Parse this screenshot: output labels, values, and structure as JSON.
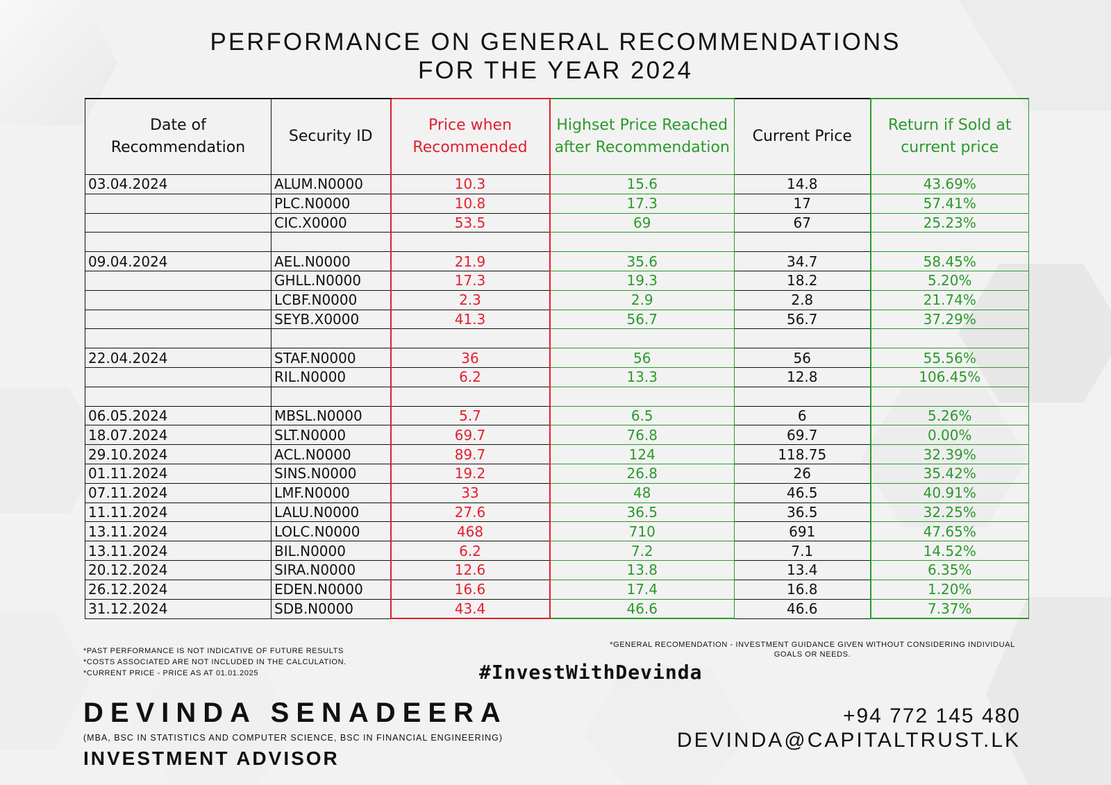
{
  "title": {
    "line1": "PERFORMANCE ON GENERAL RECOMMENDATIONS",
    "line2": "FOR THE YEAR 2024"
  },
  "table": {
    "headers": {
      "date": "Date of Recommendation",
      "security": "Security ID",
      "price_rec": "Price when Recommended",
      "highest": "Highset Price Reached after Recommendation",
      "current": "Current Price",
      "return": "Return if Sold at current price"
    },
    "rows": [
      {
        "date": "03.04.2024",
        "security": "ALUM.N0000",
        "price_rec": "10.3",
        "highest": "15.6",
        "current": "14.8",
        "return": "43.69%"
      },
      {
        "date": "",
        "security": "PLC.N0000",
        "price_rec": "10.8",
        "highest": "17.3",
        "current": "17",
        "return": "57.41%"
      },
      {
        "date": "",
        "security": "CIC.X0000",
        "price_rec": "53.5",
        "highest": "69",
        "current": "67",
        "return": "25.23%"
      },
      {
        "date": "",
        "security": "",
        "price_rec": "",
        "highest": "",
        "current": "",
        "return": ""
      },
      {
        "date": "09.04.2024",
        "security": "AEL.N0000",
        "price_rec": "21.9",
        "highest": "35.6",
        "current": "34.7",
        "return": "58.45%"
      },
      {
        "date": "",
        "security": "GHLL.N0000",
        "price_rec": "17.3",
        "highest": "19.3",
        "current": "18.2",
        "return": "5.20%"
      },
      {
        "date": "",
        "security": "LCBF.N0000",
        "price_rec": "2.3",
        "highest": "2.9",
        "current": "2.8",
        "return": "21.74%"
      },
      {
        "date": "",
        "security": "SEYB.X0000",
        "price_rec": "41.3",
        "highest": "56.7",
        "current": "56.7",
        "return": "37.29%"
      },
      {
        "date": "",
        "security": "",
        "price_rec": "",
        "highest": "",
        "current": "",
        "return": ""
      },
      {
        "date": "22.04.2024",
        "security": "STAF.N0000",
        "price_rec": "36",
        "highest": "56",
        "current": "56",
        "return": "55.56%"
      },
      {
        "date": "",
        "security": "RIL.N0000",
        "price_rec": "6.2",
        "highest": "13.3",
        "current": "12.8",
        "return": "106.45%"
      },
      {
        "date": "",
        "security": "",
        "price_rec": "",
        "highest": "",
        "current": "",
        "return": ""
      },
      {
        "date": "06.05.2024",
        "security": "MBSL.N0000",
        "price_rec": "5.7",
        "highest": "6.5",
        "current": "6",
        "return": "5.26%"
      },
      {
        "date": "18.07.2024",
        "security": "SLT.N0000",
        "price_rec": "69.7",
        "highest": "76.8",
        "current": "69.7",
        "return": "0.00%"
      },
      {
        "date": "29.10.2024",
        "security": "ACL.N0000",
        "price_rec": "89.7",
        "highest": "124",
        "current": "118.75",
        "return": "32.39%"
      },
      {
        "date": "01.11.2024",
        "security": "SINS.N0000",
        "price_rec": "19.2",
        "highest": "26.8",
        "current": "26",
        "return": "35.42%"
      },
      {
        "date": "07.11.2024",
        "security": "LMF.N0000",
        "price_rec": "33",
        "highest": "48",
        "current": "46.5",
        "return": "40.91%"
      },
      {
        "date": "11.11.2024",
        "security": "LALU.N0000",
        "price_rec": "27.6",
        "highest": "36.5",
        "current": "36.5",
        "return": "32.25%"
      },
      {
        "date": "13.11.2024",
        "security": "LOLC.N0000",
        "price_rec": "468",
        "highest": "710",
        "current": "691",
        "return": "47.65%"
      },
      {
        "date": "13.11.2024",
        "security": "BIL.N0000",
        "price_rec": "6.2",
        "highest": "7.2",
        "current": "7.1",
        "return": "14.52%"
      },
      {
        "date": "20.12.2024",
        "security": "SIRA.N0000",
        "price_rec": "12.6",
        "highest": "13.8",
        "current": "13.4",
        "return": "6.35%"
      },
      {
        "date": "26.12.2024",
        "security": "EDEN.N0000",
        "price_rec": "16.6",
        "highest": "17.4",
        "current": "16.8",
        "return": "1.20%"
      },
      {
        "date": "31.12.2024",
        "security": "SDB.N0000",
        "price_rec": "43.4",
        "highest": "46.6",
        "current": "46.6",
        "return": "7.37%"
      }
    ]
  },
  "notes": {
    "left": [
      "*PAST PERFORMANCE IS NOT INDICATIVE OF FUTURE RESULTS",
      "*COSTS ASSOCIATED ARE NOT INCLUDED IN THE CALCULATION.",
      "*CURRENT PRICE - PRICE AS AT 01.01.2025"
    ],
    "right_line1": "*GENERAL RECOMENDATION - INVESTMENT GUIDANCE GIVEN WITHOUT CONSIDERING INDIVIDUAL",
    "right_line2": "GOALS OR NEEDS."
  },
  "hashtag": "#InvestWithDevinda",
  "advisor": {
    "name": "DEVINDA SENADEERA",
    "qualifications": "(MBA, BSC IN STATISTICS AND COMPUTER SCIENCE, BSC IN FINANCIAL ENGINEERING)",
    "role": "INVESTMENT ADVISOR",
    "phone": "+94 772 145 480",
    "email": "DEVINDA@CAPITALTRUST.LK"
  },
  "colors": {
    "red": "#e2202e",
    "green": "#2a9a2a",
    "text": "#111111",
    "background": "#f1f1f1"
  }
}
